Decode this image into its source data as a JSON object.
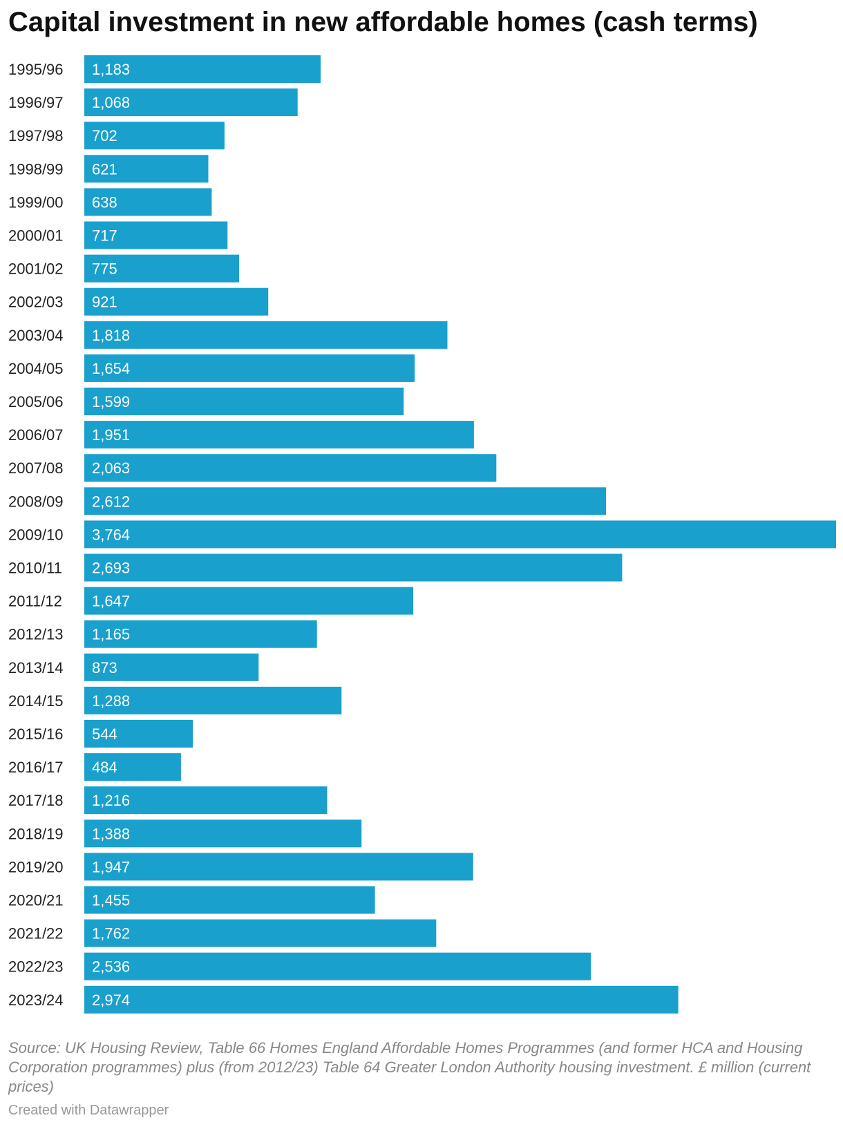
{
  "chart_data": {
    "type": "bar",
    "orientation": "horizontal",
    "title": "Capital investment in new affordable homes (cash terms)",
    "color": "#1aa0cc",
    "categories": [
      "1995/96",
      "1996/97",
      "1997/98",
      "1998/99",
      "1999/00",
      "2000/01",
      "2001/02",
      "2002/03",
      "2003/04",
      "2004/05",
      "2005/06",
      "2006/07",
      "2007/08",
      "2008/09",
      "2009/10",
      "2010/11",
      "2011/12",
      "2012/13",
      "2013/14",
      "2014/15",
      "2015/16",
      "2016/17",
      "2017/18",
      "2018/19",
      "2019/20",
      "2020/21",
      "2021/22",
      "2022/23",
      "2023/24"
    ],
    "values": [
      1183,
      1068,
      702,
      621,
      638,
      717,
      775,
      921,
      1818,
      1654,
      1599,
      1951,
      2063,
      2612,
      3764,
      2693,
      1647,
      1165,
      873,
      1288,
      544,
      484,
      1216,
      1388,
      1947,
      1455,
      1762,
      2536,
      2974
    ],
    "value_labels": [
      "1,183",
      "1,068",
      "702",
      "621",
      "638",
      "717",
      "775",
      "921",
      "1,818",
      "1,654",
      "1,599",
      "1,951",
      "2,063",
      "2,612",
      "3,764",
      "2,693",
      "1,647",
      "1,165",
      "873",
      "1,288",
      "544",
      "484",
      "1,216",
      "1,388",
      "1,947",
      "1,455",
      "1,762",
      "2,536",
      "2,974"
    ],
    "xlim": [
      0,
      3764
    ]
  },
  "notes": "Source: UK Housing Review, Table 66 Homes England Affordable Homes Programmes (and former HCA and Housing Corporation programmes) plus (from 2012/23) Table 64 Greater London Authority housing investment. £ million (current prices)",
  "credit": "Created with Datawrapper"
}
